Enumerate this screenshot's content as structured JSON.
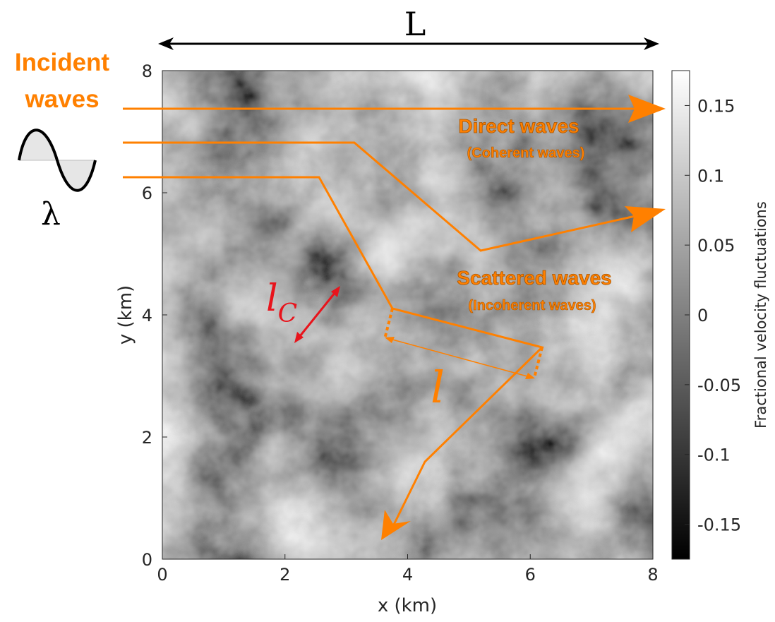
{
  "domain_scale_label": "L",
  "incident_label_line1": "Incident",
  "incident_label_line2": "waves",
  "wavelength_symbol": "λ",
  "direct_title": "Direct waves",
  "direct_subtitle": "(Coherent waves)",
  "scattered_title": "Scattered waves",
  "scattered_subtitle": "(Incoherent waves)",
  "correlation_length_symbol": "l",
  "correlation_length_subscript": "C",
  "mean_free_path_symbol": "l",
  "colorbar_label": "Fractional velocity fluctuations",
  "colors": {
    "orange": "#ff8000",
    "red": "#e8141c",
    "axis": "#262626"
  },
  "chart_data": {
    "type": "heatmap",
    "xlabel": "x (km)",
    "ylabel": "y (km)",
    "xlim": [
      0,
      8
    ],
    "ylim": [
      0,
      8
    ],
    "xticks": [
      "0",
      "2",
      "4",
      "6",
      "8"
    ],
    "yticks": [
      "0",
      "2",
      "4",
      "6",
      "8"
    ],
    "colormap": "gray",
    "clim": [
      -0.175,
      0.175
    ],
    "colorbar_ticks": [
      "0.15",
      "0.1",
      "0.05",
      "0",
      "-0.05",
      "-0.1",
      "-0.15"
    ],
    "colorbar_tick_values": [
      0.15,
      0.1,
      0.05,
      0,
      -0.05,
      -0.1,
      -0.15
    ],
    "colorbar_label": "Fractional velocity fluctuations",
    "ray_paths_km": {
      "direct": [
        [
          -0.65,
          7.35
        ],
        [
          8.2,
          7.35
        ]
      ],
      "scattered_single": [
        [
          -0.65,
          6.8
        ],
        [
          3.15,
          6.8
        ],
        [
          5.2,
          4.78
        ],
        [
          8.2,
          5.7
        ]
      ],
      "scattered_multiple": [
        [
          -0.65,
          6.25
        ],
        [
          2.55,
          6.25
        ],
        [
          3.75,
          4.12
        ],
        [
          6.2,
          3.48
        ],
        [
          4.3,
          1.55
        ],
        [
          3.6,
          0.32
        ]
      ]
    }
  }
}
